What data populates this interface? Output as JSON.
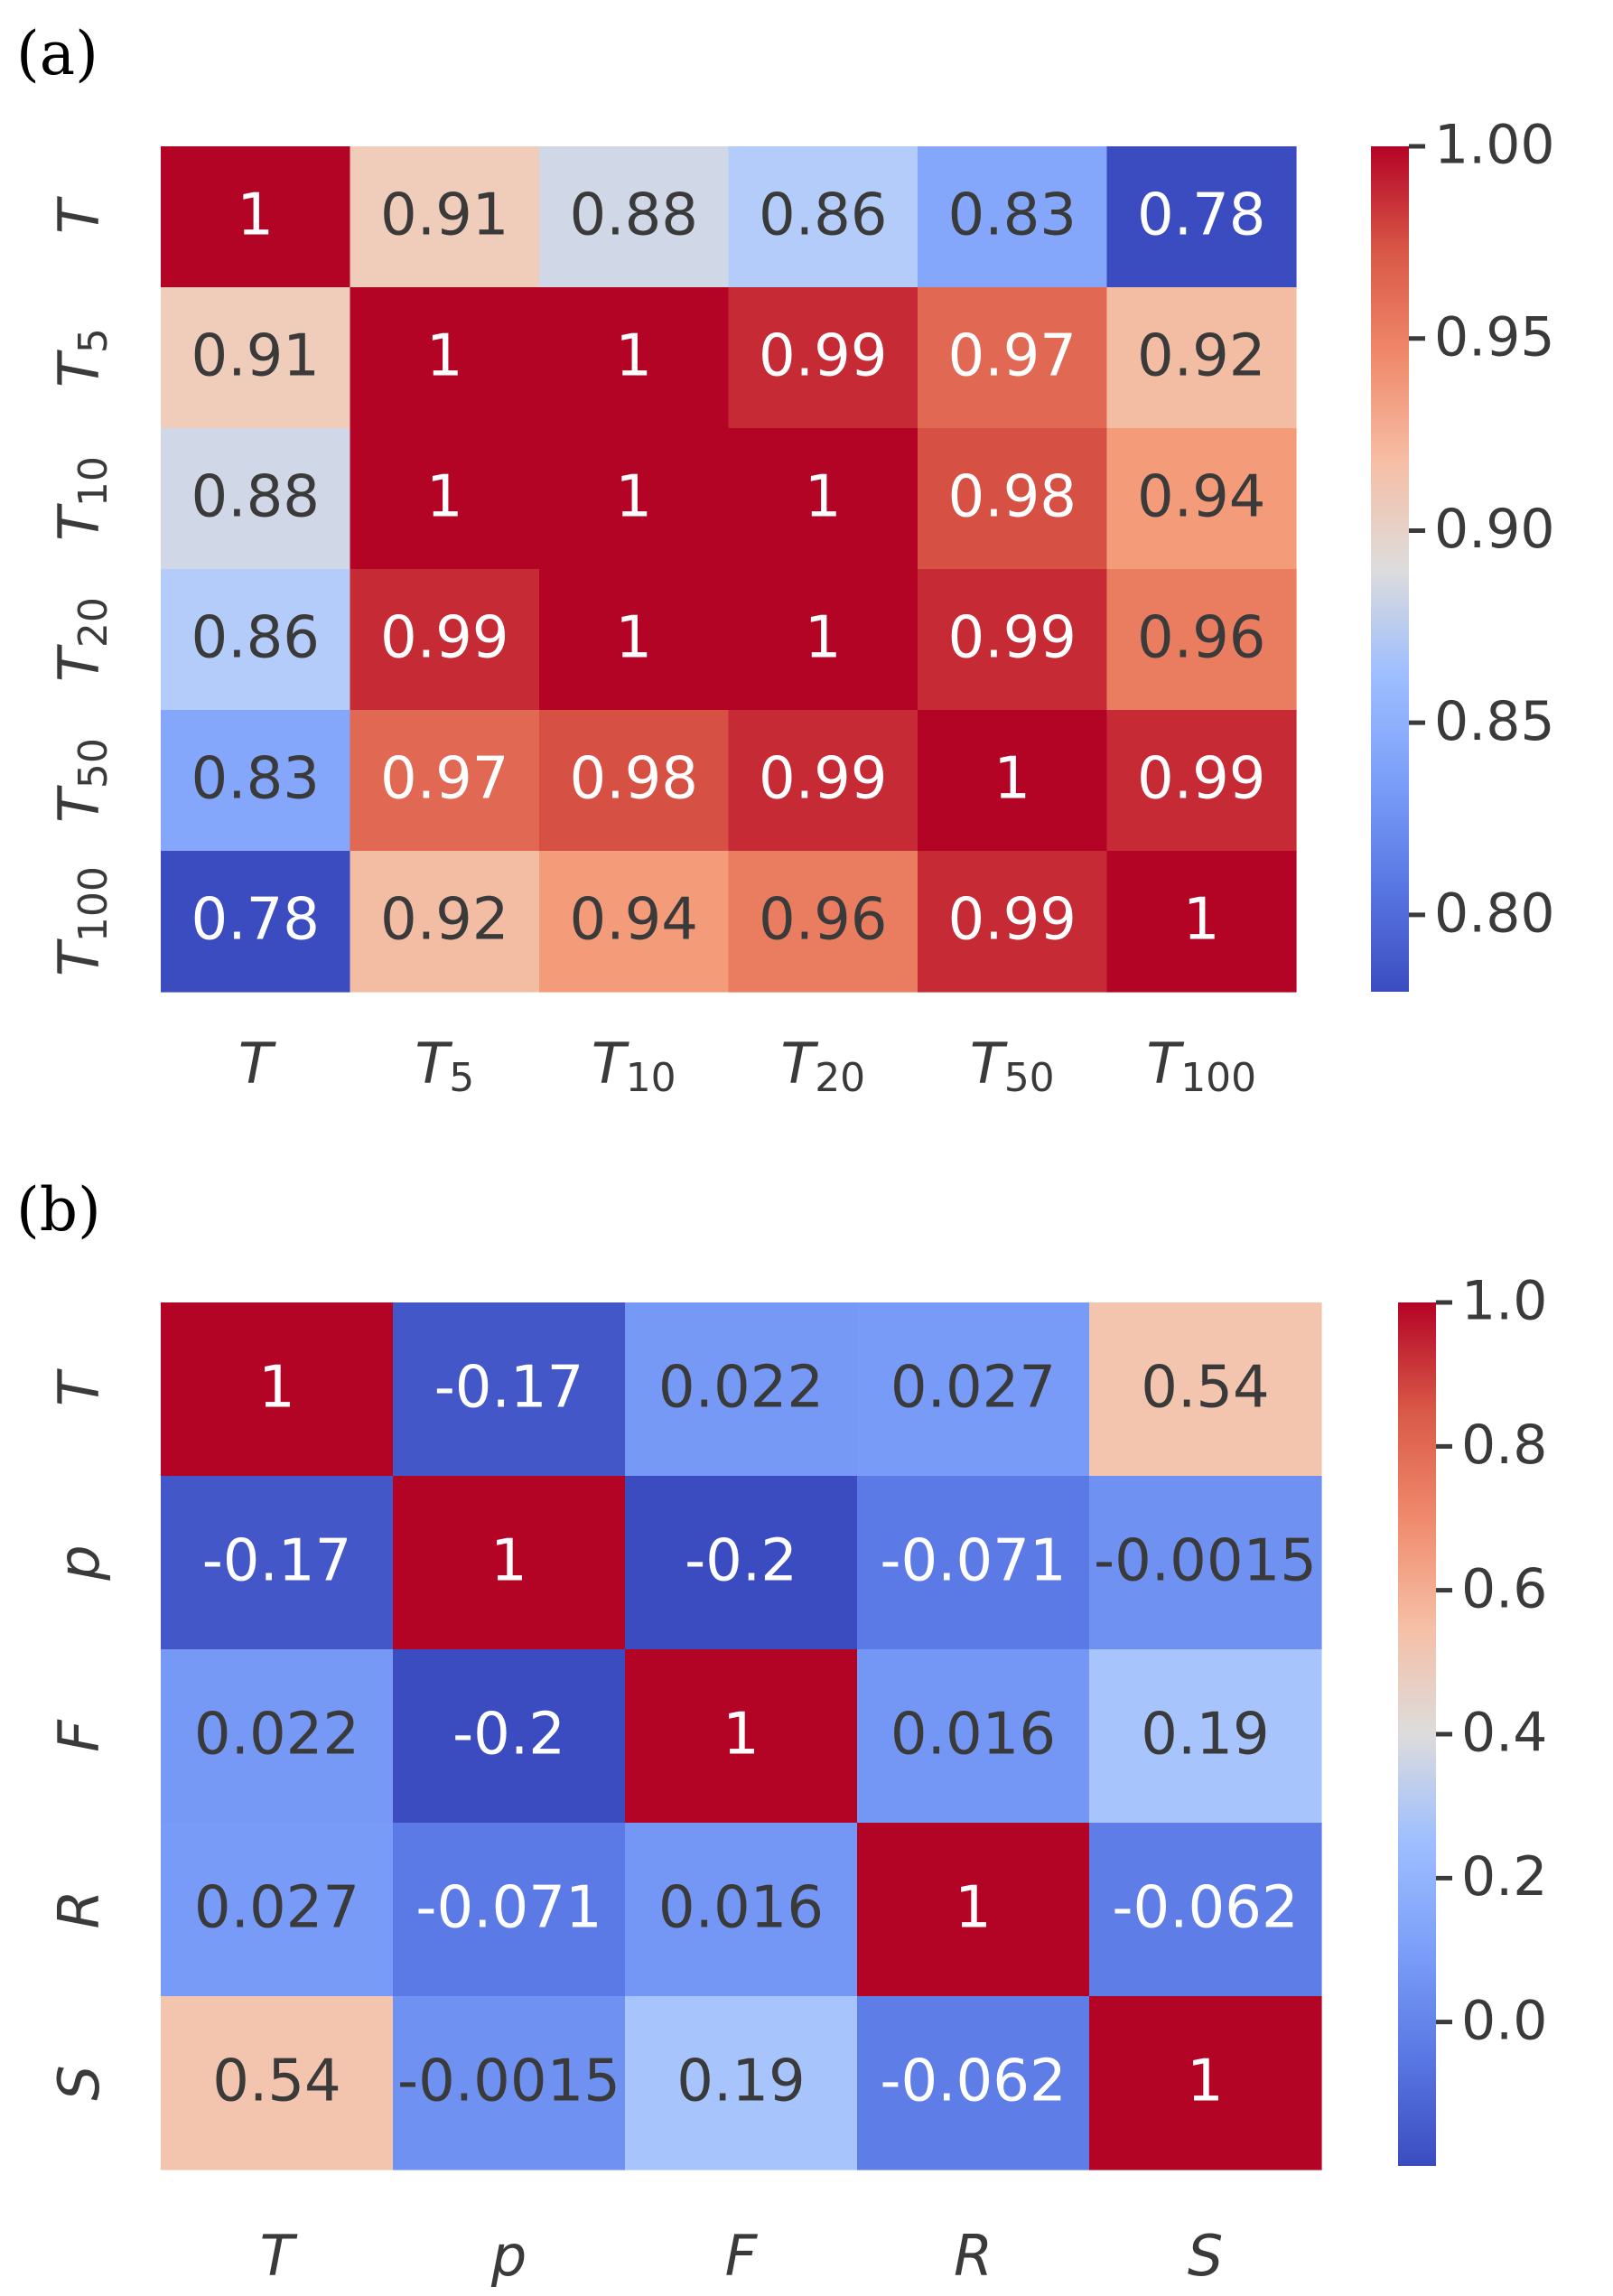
{
  "chart_data": [
    {
      "type": "heatmap",
      "panel_label": "(a)",
      "x_labels": [
        {
          "base": "T",
          "sub": ""
        },
        {
          "base": "T",
          "sub": "5"
        },
        {
          "base": "T",
          "sub": "10"
        },
        {
          "base": "T",
          "sub": "20"
        },
        {
          "base": "T",
          "sub": "50"
        },
        {
          "base": "T",
          "sub": "100"
        }
      ],
      "y_labels": [
        {
          "base": "T",
          "sub": ""
        },
        {
          "base": "T",
          "sub": "5"
        },
        {
          "base": "T",
          "sub": "10"
        },
        {
          "base": "T",
          "sub": "20"
        },
        {
          "base": "T",
          "sub": "50"
        },
        {
          "base": "T",
          "sub": "100"
        }
      ],
      "values": [
        [
          1,
          0.91,
          0.88,
          0.86,
          0.83,
          0.78
        ],
        [
          0.91,
          1,
          1,
          0.99,
          0.97,
          0.92
        ],
        [
          0.88,
          1,
          1,
          1,
          0.98,
          0.94
        ],
        [
          0.86,
          0.99,
          1,
          1,
          0.99,
          0.96
        ],
        [
          0.83,
          0.97,
          0.98,
          0.99,
          1,
          0.99
        ],
        [
          0.78,
          0.92,
          0.94,
          0.96,
          0.99,
          1
        ]
      ],
      "labels": [
        [
          "1",
          "0.91",
          "0.88",
          "0.86",
          "0.83",
          "0.78"
        ],
        [
          "0.91",
          "1",
          "1",
          "0.99",
          "0.97",
          "0.92"
        ],
        [
          "0.88",
          "1",
          "1",
          "1",
          "0.98",
          "0.94"
        ],
        [
          "0.86",
          "0.99",
          "1",
          "1",
          "0.99",
          "0.96"
        ],
        [
          "0.83",
          "0.97",
          "0.98",
          "0.99",
          "1",
          "0.99"
        ],
        [
          "0.78",
          "0.92",
          "0.94",
          "0.96",
          "0.99",
          "1"
        ]
      ],
      "colorbar": {
        "colormap": "coolwarm",
        "vmin": 0.78,
        "vmax": 1.0,
        "ticks": [
          0.8,
          0.85,
          0.9,
          0.95,
          1.0
        ],
        "tick_labels": [
          "0.80",
          "0.85",
          "0.90",
          "0.95",
          "1.00"
        ]
      }
    },
    {
      "type": "heatmap",
      "panel_label": "(b)",
      "x_labels": [
        {
          "base": "T",
          "sub": ""
        },
        {
          "base": "p",
          "sub": ""
        },
        {
          "base": "F",
          "sub": ""
        },
        {
          "base": "R",
          "sub": ""
        },
        {
          "base": "S",
          "sub": ""
        }
      ],
      "y_labels": [
        {
          "base": "T",
          "sub": ""
        },
        {
          "base": "p",
          "sub": ""
        },
        {
          "base": "F",
          "sub": ""
        },
        {
          "base": "R",
          "sub": ""
        },
        {
          "base": "S",
          "sub": ""
        }
      ],
      "values": [
        [
          1,
          -0.17,
          0.022,
          0.027,
          0.54
        ],
        [
          -0.17,
          1,
          -0.2,
          -0.071,
          -0.0015
        ],
        [
          0.022,
          -0.2,
          1,
          0.016,
          0.19
        ],
        [
          0.027,
          -0.071,
          0.016,
          1,
          -0.062
        ],
        [
          0.54,
          -0.0015,
          0.19,
          -0.062,
          1
        ]
      ],
      "labels": [
        [
          "1",
          "-0.17",
          "0.022",
          "0.027",
          "0.54"
        ],
        [
          "-0.17",
          "1",
          "-0.2",
          "-0.071",
          "-0.0015"
        ],
        [
          "0.022",
          "-0.2",
          "1",
          "0.016",
          "0.19"
        ],
        [
          "0.027",
          "-0.071",
          "0.016",
          "1",
          "-0.062"
        ],
        [
          "0.54",
          "-0.0015",
          "0.19",
          "-0.062",
          "1"
        ]
      ],
      "colorbar": {
        "colormap": "coolwarm",
        "vmin": -0.2,
        "vmax": 1.0,
        "ticks": [
          0.0,
          0.2,
          0.4,
          0.6,
          0.8,
          1.0
        ],
        "tick_labels": [
          "0.0",
          "0.2",
          "0.4",
          "0.6",
          "0.8",
          "1.0"
        ]
      }
    }
  ]
}
